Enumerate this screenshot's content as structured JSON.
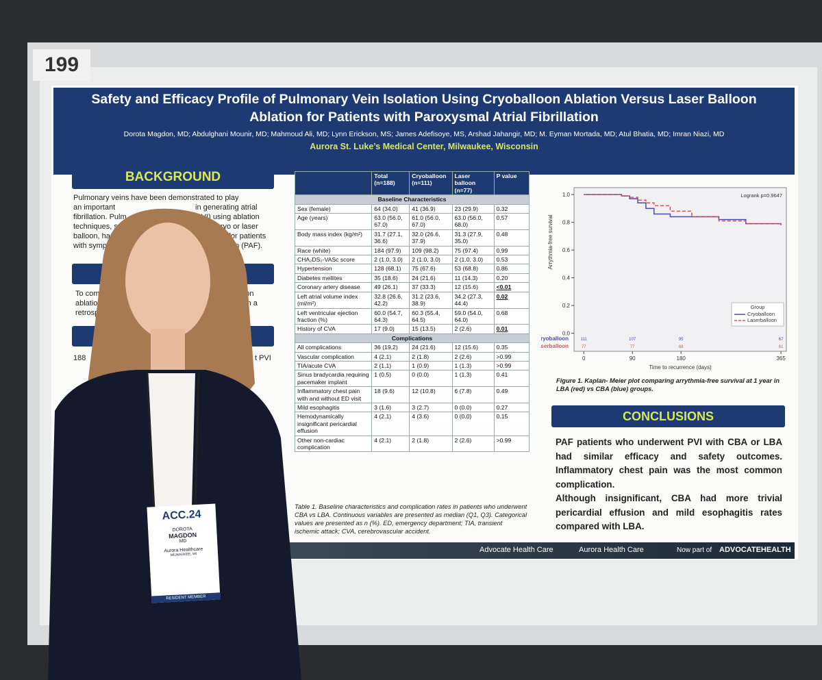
{
  "booth": "199",
  "header": {
    "title_lines": [
      "Safety and Efficacy Profile of Pulmonary Vein Isolation Using Cryoballoon Ablation Versus Laser Balloon",
      "Ablation for Patients with Paroxysmal Atrial Fibrillation"
    ],
    "authors": "Dorota Magdon, MD; Abdulghani Mounir, MD; Mahmoud Ali, MD; Lynn Erickson, MS; James Adefisoye, MS, Arshad Jahangir, MD; M. Eyman Mortada, MD; Atul Bhatia, MD; Imran Niazi, MD",
    "affiliation": "Aurora St. Luke’s Medical Center, Milwaukee, Wisconsin"
  },
  "background": {
    "heading": "BACKGROUND",
    "fragments": [
      "Pulmonary veins have been demonstrated to play",
      "an important",
      "in generating atrial",
      "fibrillation. Pulm",
      "tion (PVI) using ablation",
      "techniques, s",
      "cy, cryo or laser",
      "balloon, has",
      "ective for patients",
      "with sympt",
      "illation (PAF).",
      "To com",
      "of cryoballoon",
      "ablation",
      "ation (LBA) in a",
      "retrosp",
      "188",
      "t PVI"
    ]
  },
  "table": {
    "columns": [
      "",
      "Total (n=188)",
      "Cryoballoon (n=111)",
      "Laser balloon (n=77)",
      "P value"
    ],
    "sections": [
      {
        "title": "Baseline Characteristics",
        "rows": [
          {
            "cells": [
              "Sex (female)",
              "64 (34.0)",
              "41 (36.9)",
              "23 (29.9)",
              "0.32"
            ]
          },
          {
            "cells": [
              "Age (years)",
              "63.0 (56.0, 67.0)",
              "61.0 (56.0, 67.0)",
              "63.0 (56.0, 68.0)",
              "0.57"
            ]
          },
          {
            "cells": [
              "Body mass index (kg/m²)",
              "31.7 (27.1, 36.6)",
              "32.0 (26.6, 37.9)",
              "31.3 (27.9, 35.0)",
              "0.48"
            ]
          },
          {
            "cells": [
              "Race (white)",
              "184 (97.9)",
              "109 (98.2)",
              "75 (97.4)",
              "0.99"
            ]
          },
          {
            "cells": [
              "CHA₂DS₂-VASc score",
              "2 (1.0, 3.0)",
              "2 (1.0, 3.0)",
              "2 (1.0, 3.0)",
              "0.53"
            ]
          },
          {
            "cells": [
              "Hypertension",
              "128 (68.1)",
              "75 (67.6)",
              "53 (68.8)",
              "0.86"
            ]
          },
          {
            "cells": [
              "Diabetes mellites",
              "35 (18.6)",
              "24 (21.6)",
              "11 (14.3)",
              "0.20"
            ]
          },
          {
            "cells": [
              "Coronary artery disease",
              "49 (26.1)",
              "37 (33.3)",
              "12 (15.6)",
              "<0.01"
            ],
            "significant": true
          },
          {
            "cells": [
              "Left atrial volume index (ml/m²)",
              "32.8 (26.6, 42.2)",
              "31.2 (23.6, 38.9)",
              "34.2 (27.3, 44.4)",
              "0.02"
            ],
            "significant": true
          },
          {
            "cells": [
              "Left ventricular ejection fraction (%)",
              "60.0 (54.7, 64.3)",
              "60.3 (55.4, 64.5)",
              "59.0 (54.0, 64.0)",
              "0.68"
            ]
          },
          {
            "cells": [
              "History of CVA",
              "17 (9.0)",
              "15 (13.5)",
              "2 (2.6)",
              "0.01"
            ],
            "significant": true
          }
        ]
      },
      {
        "title": "Complications",
        "rows": [
          {
            "cells": [
              "All complications",
              "36 (19.2)",
              "24 (21.6)",
              "12 (15.6)",
              "0.35"
            ]
          },
          {
            "cells": [
              "Vascular complication",
              "4 (2.1)",
              "2 (1.8)",
              "2 (2.6)",
              ">0.99"
            ]
          },
          {
            "cells": [
              "TIA/acute CVA",
              "2 (1.1)",
              "1 (0.9)",
              "1 (1.3)",
              ">0.99"
            ]
          },
          {
            "cells": [
              "Sinus bradycardia requiring pacemaker implant",
              "1 (0.5)",
              "0 (0.0)",
              "1 (1.3)",
              "0.41"
            ]
          },
          {
            "cells": [
              "Inflammatory chest pain with and without ED visit",
              "18 (9.6)",
              "12 (10.8)",
              "6 (7.8)",
              "0.49"
            ]
          },
          {
            "cells": [
              "Mild esophagitis",
              "3 (1.6)",
              "3 (2.7)",
              "0 (0.0)",
              "0.27"
            ]
          },
          {
            "cells": [
              "Hemodynamically insignificant pericardial effusion",
              "4 (2.1)",
              "4 (3.6)",
              "0 (0.0)",
              "0.15"
            ]
          },
          {
            "cells": [
              "Other non-cardiac complication",
              "4 (2.1)",
              "2 (1.8)",
              "2 (2.6)",
              ">0.99"
            ]
          }
        ]
      }
    ],
    "caption": "Table 1.  Baseline characteristics and complication rates in patients who underwent CBA vs LBA. Continuous variables are presented as median (Q1, Q3). Categorical values are presented as n (%). ED, emergency department; TIA, transient ischemic attack; CVA, cerebrovascular accident."
  },
  "chart_data": {
    "type": "line",
    "xlabel": "Time to recurrence (days)",
    "ylabel": "Arrythmia-free survival",
    "annotation": "Logrank p=0.9647",
    "legend_title": "Group",
    "legend": "bottom-right",
    "xlim": [
      -18,
      375
    ],
    "ylim": [
      -0.13,
      1.05
    ],
    "xticks": [
      0,
      90,
      180,
      365
    ],
    "yticks": [
      {
        "value": 0,
        "label": "0.0"
      },
      0.2,
      0.4,
      0.6,
      0.8,
      {
        "value": 1,
        "label": "1.0"
      }
    ],
    "x": [
      0,
      40,
      70,
      85,
      100,
      115,
      130,
      160,
      200,
      250,
      300,
      365
    ],
    "series": [
      {
        "name": "Cryoballoon",
        "color": "#4a4aa8",
        "values": [
          1,
          1,
          0.99,
          0.97,
          0.94,
          0.9,
          0.86,
          0.84,
          0.84,
          0.82,
          0.79,
          0.78
        ]
      },
      {
        "name": "Laserballoon",
        "color": "#c45a5a",
        "dashed": true,
        "values": [
          1,
          1,
          0.99,
          0.98,
          0.96,
          0.94,
          0.92,
          0.88,
          0.84,
          0.81,
          0.79,
          0.78
        ]
      }
    ],
    "risk_table": {
      "x": [
        0,
        90,
        180,
        365
      ],
      "rows": [
        [
          111,
          107,
          95,
          67
        ],
        [
          77,
          77,
          69,
          61
        ]
      ]
    },
    "caption": "Figure 1. Kaplan- Meier plot comparing arrythmia-free survival at 1 year in LBA (red) vs CBA (blue) groups."
  },
  "conclusions": {
    "heading": "CONCLUSIONS",
    "paragraphs": [
      "PAF patients who underwent PVI with CBA or LBA had similar efficacy and safety outcomes. Inflammatory chest pain was the most common complication.",
      "Although insignificant, CBA had more trivial pericardial effusion and mild esophagitis rates compared with LBA."
    ]
  },
  "footer": {
    "logos": [
      "Advocate Health Care",
      "Aurora Health Care"
    ],
    "note": "Now part of",
    "brand": "ADVOCATEHEALTH"
  },
  "badge": {
    "event": "ACC.24",
    "first": "DOROTA",
    "last": "MAGDON",
    "degree": "MD",
    "org": "Aurora Healthcare",
    "city": "MILWAUKEE, WI",
    "member": "RESIDENT MEMBER"
  }
}
